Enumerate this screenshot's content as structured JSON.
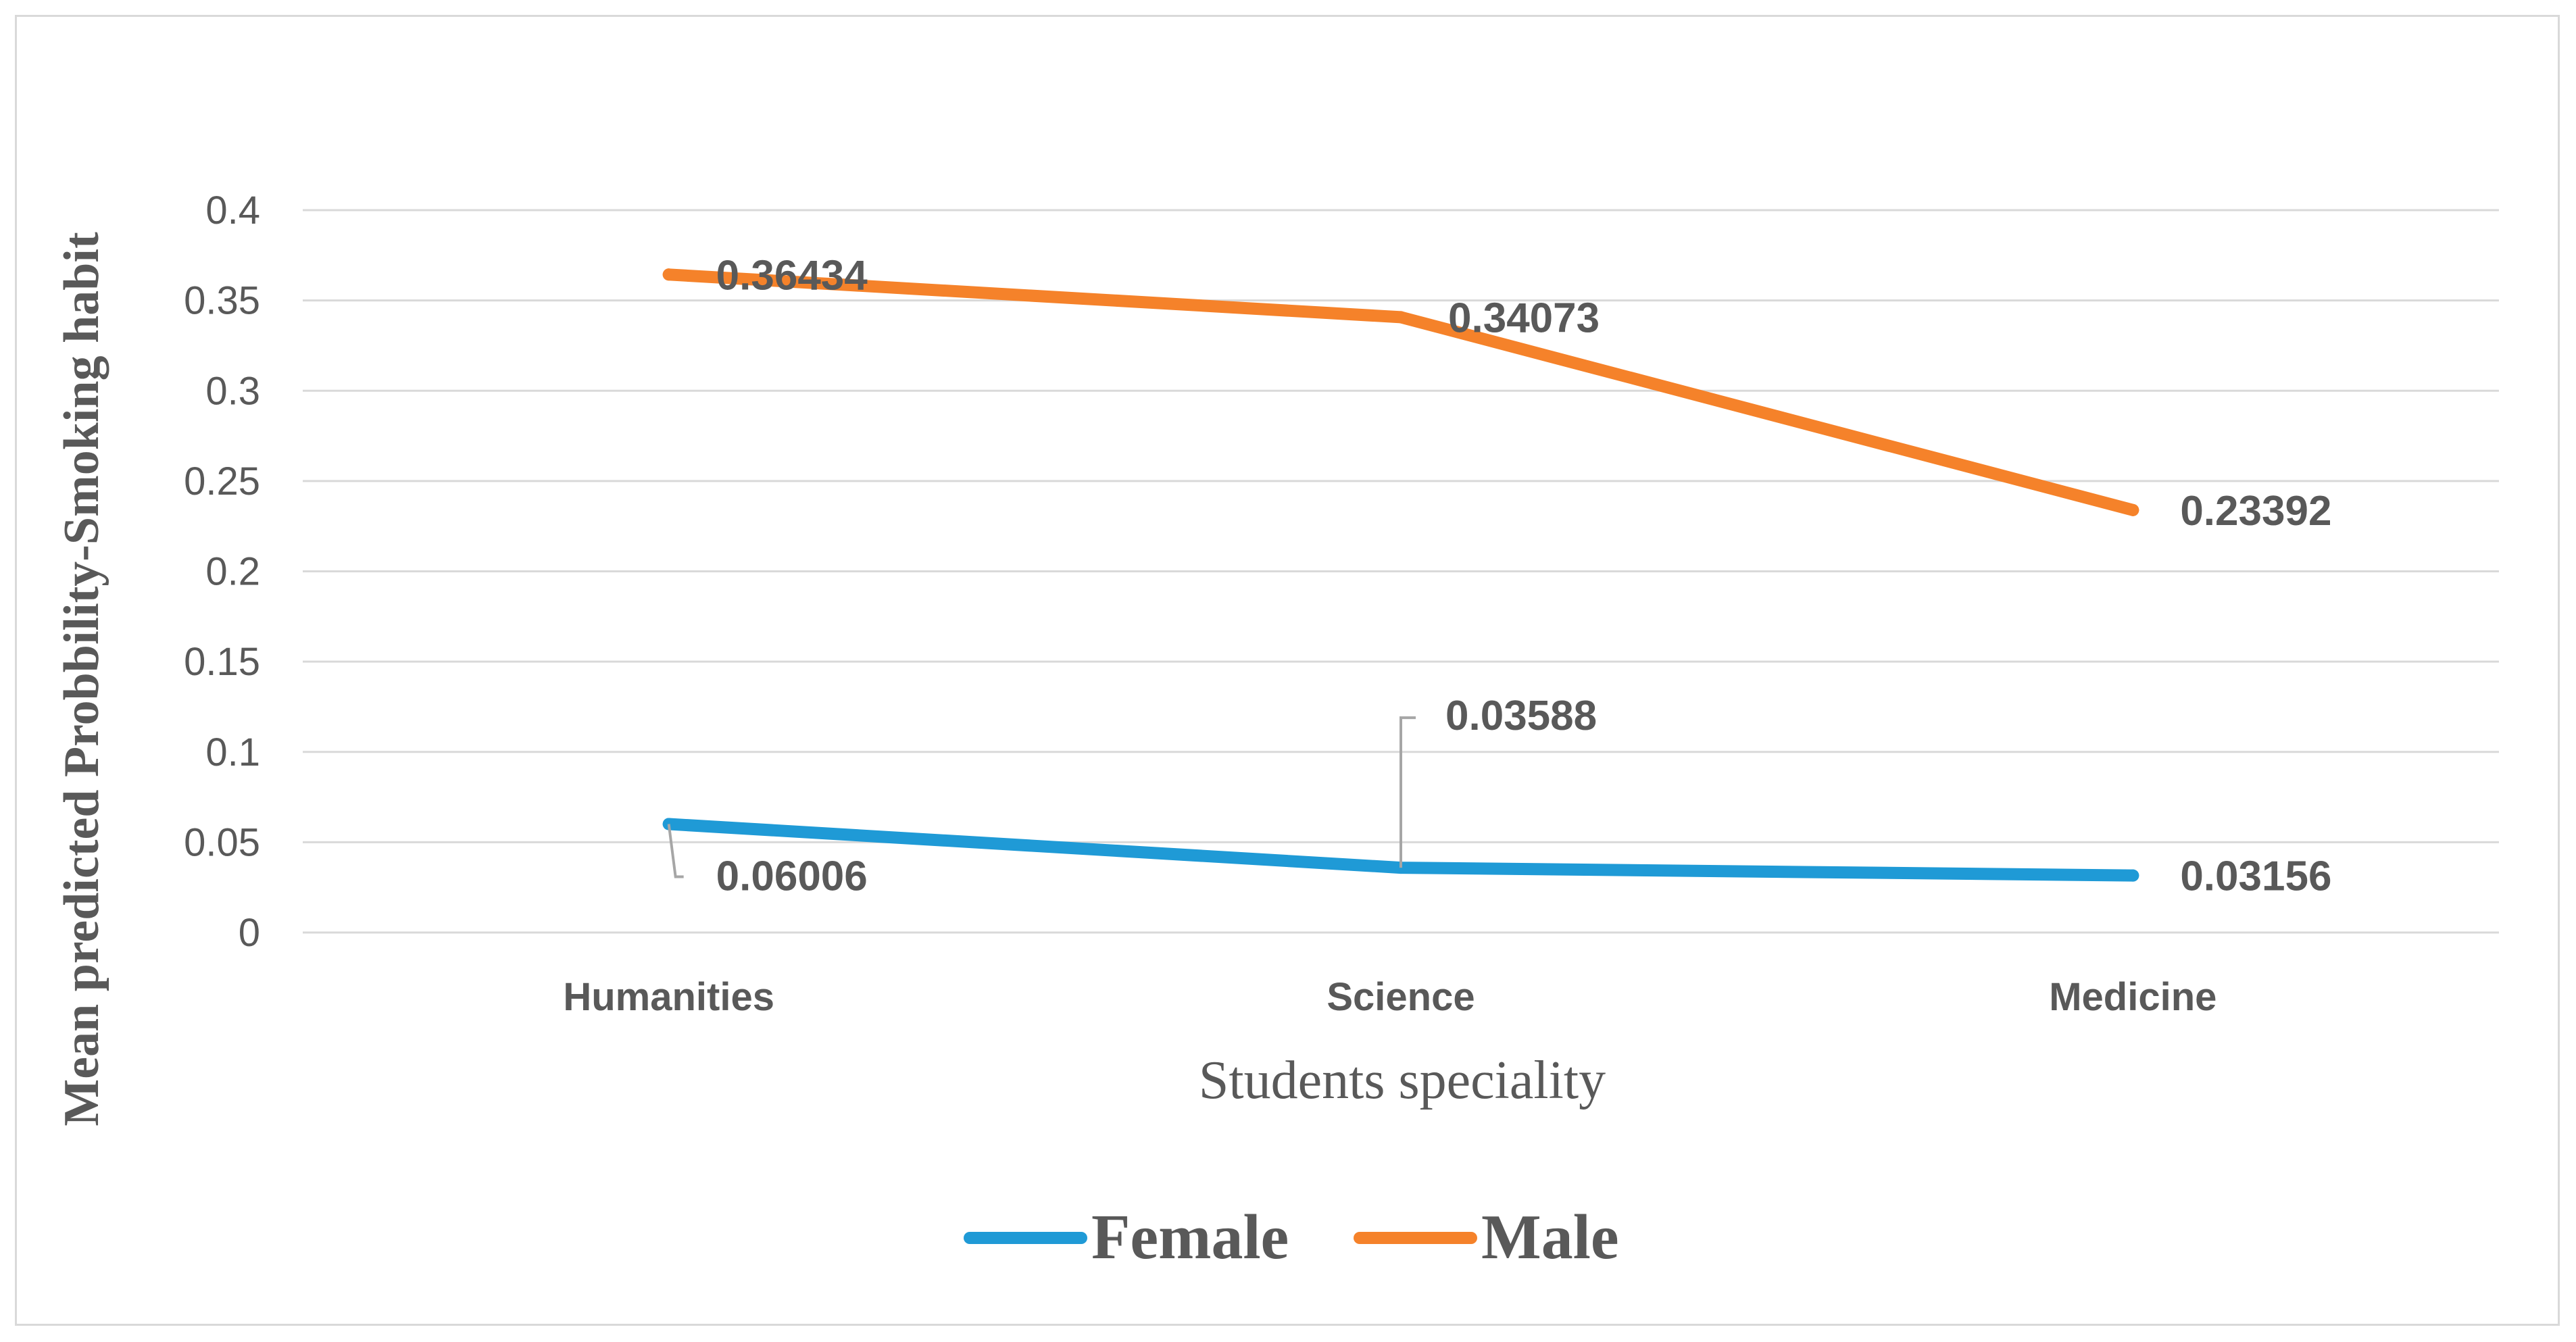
{
  "chart_data": {
    "type": "line",
    "title": "",
    "xlabel": "Students speciality",
    "ylabel": "Mean predicted Probbility-Smoking habit",
    "categories": [
      "Humanities",
      "Science",
      "Medicine"
    ],
    "ylim": [
      0,
      0.4
    ],
    "yticks": [
      "0",
      "0.05",
      "0.1",
      "0.15",
      "0.2",
      "0.25",
      "0.3",
      "0.35",
      "0.4"
    ],
    "grid": true,
    "legend_position": "bottom",
    "series": [
      {
        "name": "Female",
        "color": "#1f9ad6",
        "values": [
          0.06006,
          0.03588,
          0.03156
        ],
        "labels": [
          "0.06006",
          "0.03588",
          "0.03156"
        ]
      },
      {
        "name": "Male",
        "color": "#f5822a",
        "values": [
          0.36434,
          0.34073,
          0.23392
        ],
        "labels": [
          "0.36434",
          "0.34073",
          "0.23392"
        ]
      }
    ]
  }
}
